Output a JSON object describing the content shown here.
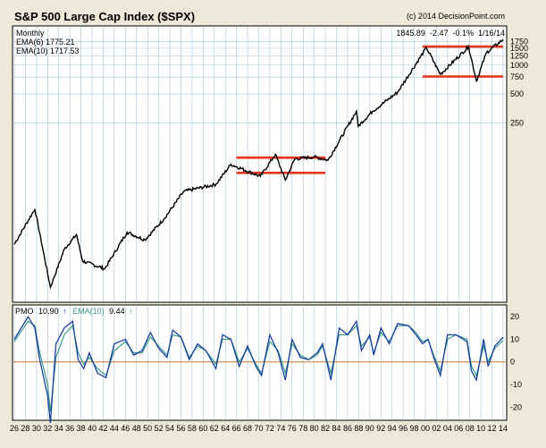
{
  "header": {
    "title": "S&P 500 Large Cap Index ($SPX)",
    "copyright": "(c) 2014 DecisionPoint.com"
  },
  "main_legend": {
    "period": "Monthly",
    "ema6": "EMA(6) 1775.21",
    "ema10": "EMA(10) 1717.53",
    "quote": "1845.89  -2.47  -0.1%  1/16/14"
  },
  "pmo_legend": {
    "pmo_label": "PMO",
    "pmo_value": "10.90",
    "pmo_arrow": "↑",
    "ema_label": "EMA(10)",
    "ema_value": "9.44",
    "ema_arrow": "↑"
  },
  "colors": {
    "background": "#ece9d8",
    "plot_background": "#ffffff",
    "price_line": "#000000",
    "grid": "#a4c4d8",
    "support_resistance": "#e8351c",
    "pmo_line": "#1a3f9e",
    "pmo_ema_line": "#3a9a8a",
    "zero_line": "#c87828"
  },
  "chart_data": [
    {
      "type": "line",
      "panel": "price",
      "scale": "log",
      "y_ticks": [
        1750,
        1500,
        1250,
        1000,
        750,
        500,
        250
      ],
      "x_tick_labels": [
        "26",
        "28",
        "30",
        "32",
        "34",
        "36",
        "38",
        "40",
        "42",
        "44",
        "46",
        "48",
        "50",
        "52",
        "54",
        "56",
        "58",
        "60",
        "62",
        "64",
        "66",
        "68",
        "70",
        "72",
        "74",
        "76",
        "78",
        "80",
        "82",
        "84",
        "86",
        "88",
        "90",
        "92",
        "94",
        "96",
        "98",
        "00",
        "02",
        "04",
        "06",
        "08",
        "10",
        "12",
        "14"
      ],
      "series": [
        {
          "key": "spx",
          "x": [
            1926,
            1929.7,
            1932.5,
            1935,
            1937.2,
            1938.3,
            1942.3,
            1946.3,
            1949.5,
            1953,
            1956.5,
            1962.3,
            1965,
            1970.3,
            1973,
            1974.8,
            1976.5,
            1980,
            1982.5,
            1987.6,
            1987.9,
            1990.5,
            1995,
            2000.2,
            2002.7,
            2007.8,
            2009.2,
            2011,
            2014
          ],
          "y": [
            13.5,
            31.5,
            4.8,
            12,
            17,
            9,
            7.5,
            18,
            15,
            25,
            48,
            57,
            92,
            69,
            117,
            63,
            105,
            110,
            102,
            330,
            230,
            330,
            520,
            1520,
            800,
            1560,
            680,
            1350,
            1846
          ]
        }
      ],
      "horizontal_levels": [
        {
          "from": 1966,
          "to": 1982,
          "value": 108
        },
        {
          "from": 1966,
          "to": 1982,
          "value": 75
        },
        {
          "from": 1999.5,
          "to": 2014,
          "value": 1560
        },
        {
          "from": 1999.5,
          "to": 2014,
          "value": 760
        }
      ]
    },
    {
      "type": "line",
      "panel": "pmo",
      "ylim": [
        -25,
        24
      ],
      "y_ticks": [
        20,
        10,
        0,
        -10,
        -20
      ],
      "series": [
        {
          "key": "pmo",
          "x": [
            1926,
            1928.5,
            1929.7,
            1930.5,
            1932,
            1932.5,
            1933.5,
            1935,
            1936.5,
            1937.5,
            1938.5,
            1939.5,
            1941,
            1942.5,
            1944,
            1946,
            1947.5,
            1949,
            1950.5,
            1952,
            1953.5,
            1954.5,
            1956,
            1957.5,
            1959,
            1960.5,
            1962.3,
            1963.5,
            1965,
            1966.5,
            1968,
            1969.5,
            1970.5,
            1972,
            1973.5,
            1974.8,
            1976,
            1977.5,
            1979,
            1980.5,
            1981.5,
            1983,
            1984.5,
            1986,
            1987.6,
            1988.5,
            1990,
            1990.7,
            1992,
            1993.5,
            1995,
            1997,
            1998.3,
            1999.5,
            2000.5,
            2001.5,
            2002.7,
            2004,
            2005.5,
            2007.5,
            2008.3,
            2009.2,
            2010.5,
            2011.3,
            2012.5,
            2014
          ],
          "y": [
            10,
            20,
            15,
            2,
            -15,
            -27,
            8,
            15,
            18,
            1,
            -3,
            4,
            -5,
            -7,
            8,
            10,
            3,
            5,
            13,
            6,
            2,
            14,
            11,
            1,
            8,
            5,
            -3,
            12,
            10,
            -2,
            7,
            -2,
            -6,
            12,
            4,
            -8,
            10,
            2,
            1,
            4,
            8,
            -8,
            15,
            12,
            18,
            5,
            12,
            3,
            15,
            8,
            17,
            16,
            12,
            8,
            10,
            2,
            -6,
            12,
            12,
            9,
            -4,
            -8,
            10,
            -2,
            7,
            10.9
          ]
        },
        {
          "key": "pmo_ema10",
          "x": [
            1926,
            1928.5,
            1929.7,
            1930.5,
            1932,
            1932.5,
            1933.5,
            1935,
            1936.5,
            1937.5,
            1938.5,
            1939.5,
            1941,
            1942.5,
            1944,
            1946,
            1947.5,
            1949,
            1950.5,
            1952,
            1953.5,
            1954.5,
            1956,
            1957.5,
            1959,
            1960.5,
            1962.3,
            1963.5,
            1965,
            1966.5,
            1968,
            1969.5,
            1970.5,
            1972,
            1973.5,
            1974.8,
            1976,
            1977.5,
            1979,
            1980.5,
            1981.5,
            1983,
            1984.5,
            1986,
            1987.6,
            1988.5,
            1990,
            1990.7,
            1992,
            1993.5,
            1995,
            1997,
            1998.3,
            1999.5,
            2000.5,
            2001.5,
            2002.7,
            2004,
            2005.5,
            2007.5,
            2008.3,
            2009.2,
            2010.5,
            2011.3,
            2012.5,
            2014
          ],
          "y": [
            9,
            18,
            16,
            5,
            -10,
            -22,
            2,
            12,
            16,
            4,
            -1,
            2,
            -3,
            -6,
            5,
            9,
            4,
            4,
            11,
            7,
            3,
            12,
            11,
            2,
            7,
            5,
            -1,
            10,
            10,
            0,
            6,
            -1,
            -5,
            9,
            5,
            -5,
            8,
            3,
            1,
            3,
            7,
            -5,
            12,
            12,
            16,
            7,
            11,
            4,
            13,
            9,
            16,
            16,
            13,
            9,
            10,
            3,
            -4,
            10,
            12,
            10,
            -2,
            -6,
            7,
            0,
            6,
            9.44
          ]
        }
      ]
    }
  ]
}
